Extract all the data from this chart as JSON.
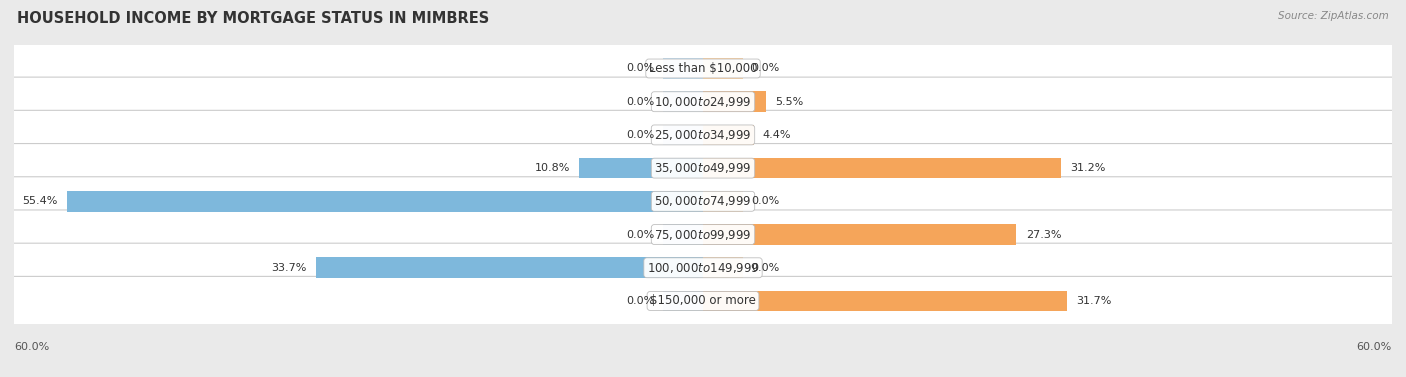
{
  "title": "HOUSEHOLD INCOME BY MORTGAGE STATUS IN MIMBRES",
  "source": "Source: ZipAtlas.com",
  "categories": [
    "Less than $10,000",
    "$10,000 to $24,999",
    "$25,000 to $34,999",
    "$35,000 to $49,999",
    "$50,000 to $74,999",
    "$75,000 to $99,999",
    "$100,000 to $149,999",
    "$150,000 or more"
  ],
  "without_mortgage": [
    0.0,
    0.0,
    0.0,
    10.8,
    55.4,
    0.0,
    33.7,
    0.0
  ],
  "with_mortgage": [
    0.0,
    5.5,
    4.4,
    31.2,
    0.0,
    27.3,
    0.0,
    31.7
  ],
  "color_without": "#7EB8DC",
  "color_with": "#F5A55A",
  "color_without_light": "#BEDAEE",
  "color_with_light": "#FBCF9C",
  "xlim": 60.0,
  "bg_color": "#EAEAEA",
  "row_bg_odd": "#F5F5F5",
  "row_bg_even": "#EBEBEB",
  "axis_label": "60.0%",
  "label_fontsize": 8.0,
  "cat_fontsize": 8.5,
  "title_fontsize": 10.5,
  "source_fontsize": 7.5
}
